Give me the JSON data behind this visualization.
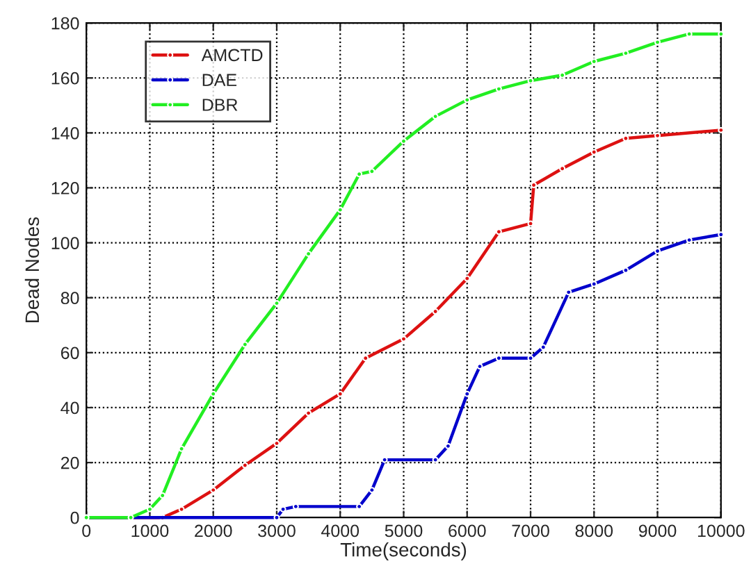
{
  "chart_data": {
    "type": "line",
    "xlabel": "Time(seconds)",
    "ylabel": "Dead Nodes",
    "xlim": [
      0,
      10000
    ],
    "xticks": [
      0,
      1000,
      2000,
      3000,
      4000,
      5000,
      6000,
      7000,
      8000,
      9000,
      10000
    ],
    "ylim": [
      0,
      180
    ],
    "yticks": [
      0,
      20,
      40,
      60,
      80,
      100,
      120,
      140,
      160,
      180
    ],
    "grid": true,
    "legend": "top left",
    "marker": "circle",
    "line_style": "solid",
    "series": [
      {
        "name": "AMCTD",
        "color": "#dd1111",
        "x": [
          0,
          1200,
          1500,
          2000,
          2500,
          3000,
          3500,
          4000,
          4400,
          5000,
          5500,
          6000,
          6500,
          7000,
          7050,
          7500,
          8000,
          8500,
          9000,
          10000
        ],
        "values": [
          0,
          0,
          3,
          10,
          19,
          27,
          38,
          45,
          58,
          65,
          75,
          87,
          104,
          107,
          121,
          127,
          133,
          138,
          139,
          141
        ]
      },
      {
        "name": "DAE",
        "color": "#0000cc",
        "x": [
          0,
          3000,
          3100,
          3300,
          4300,
          4500,
          4700,
          5500,
          5700,
          6000,
          6200,
          6500,
          7000,
          7200,
          7600,
          8000,
          8500,
          9000,
          9500,
          10000
        ],
        "values": [
          0,
          0,
          3,
          4,
          4,
          10,
          21,
          21,
          26,
          45,
          55,
          58,
          58,
          62,
          82,
          85,
          90,
          97,
          101,
          103
        ]
      },
      {
        "name": "DBR",
        "color": "#22ee22",
        "x": [
          0,
          700,
          1000,
          1200,
          1500,
          2000,
          2500,
          3000,
          3500,
          4000,
          4300,
          4500,
          5000,
          5500,
          6000,
          6500,
          7000,
          7500,
          8000,
          8500,
          9000,
          9500,
          10000
        ],
        "values": [
          0,
          0,
          3,
          8,
          25,
          45,
          63,
          78,
          96,
          112,
          125,
          126,
          137,
          146,
          152,
          156,
          159,
          161,
          166,
          169,
          173,
          176,
          176
        ]
      }
    ]
  }
}
